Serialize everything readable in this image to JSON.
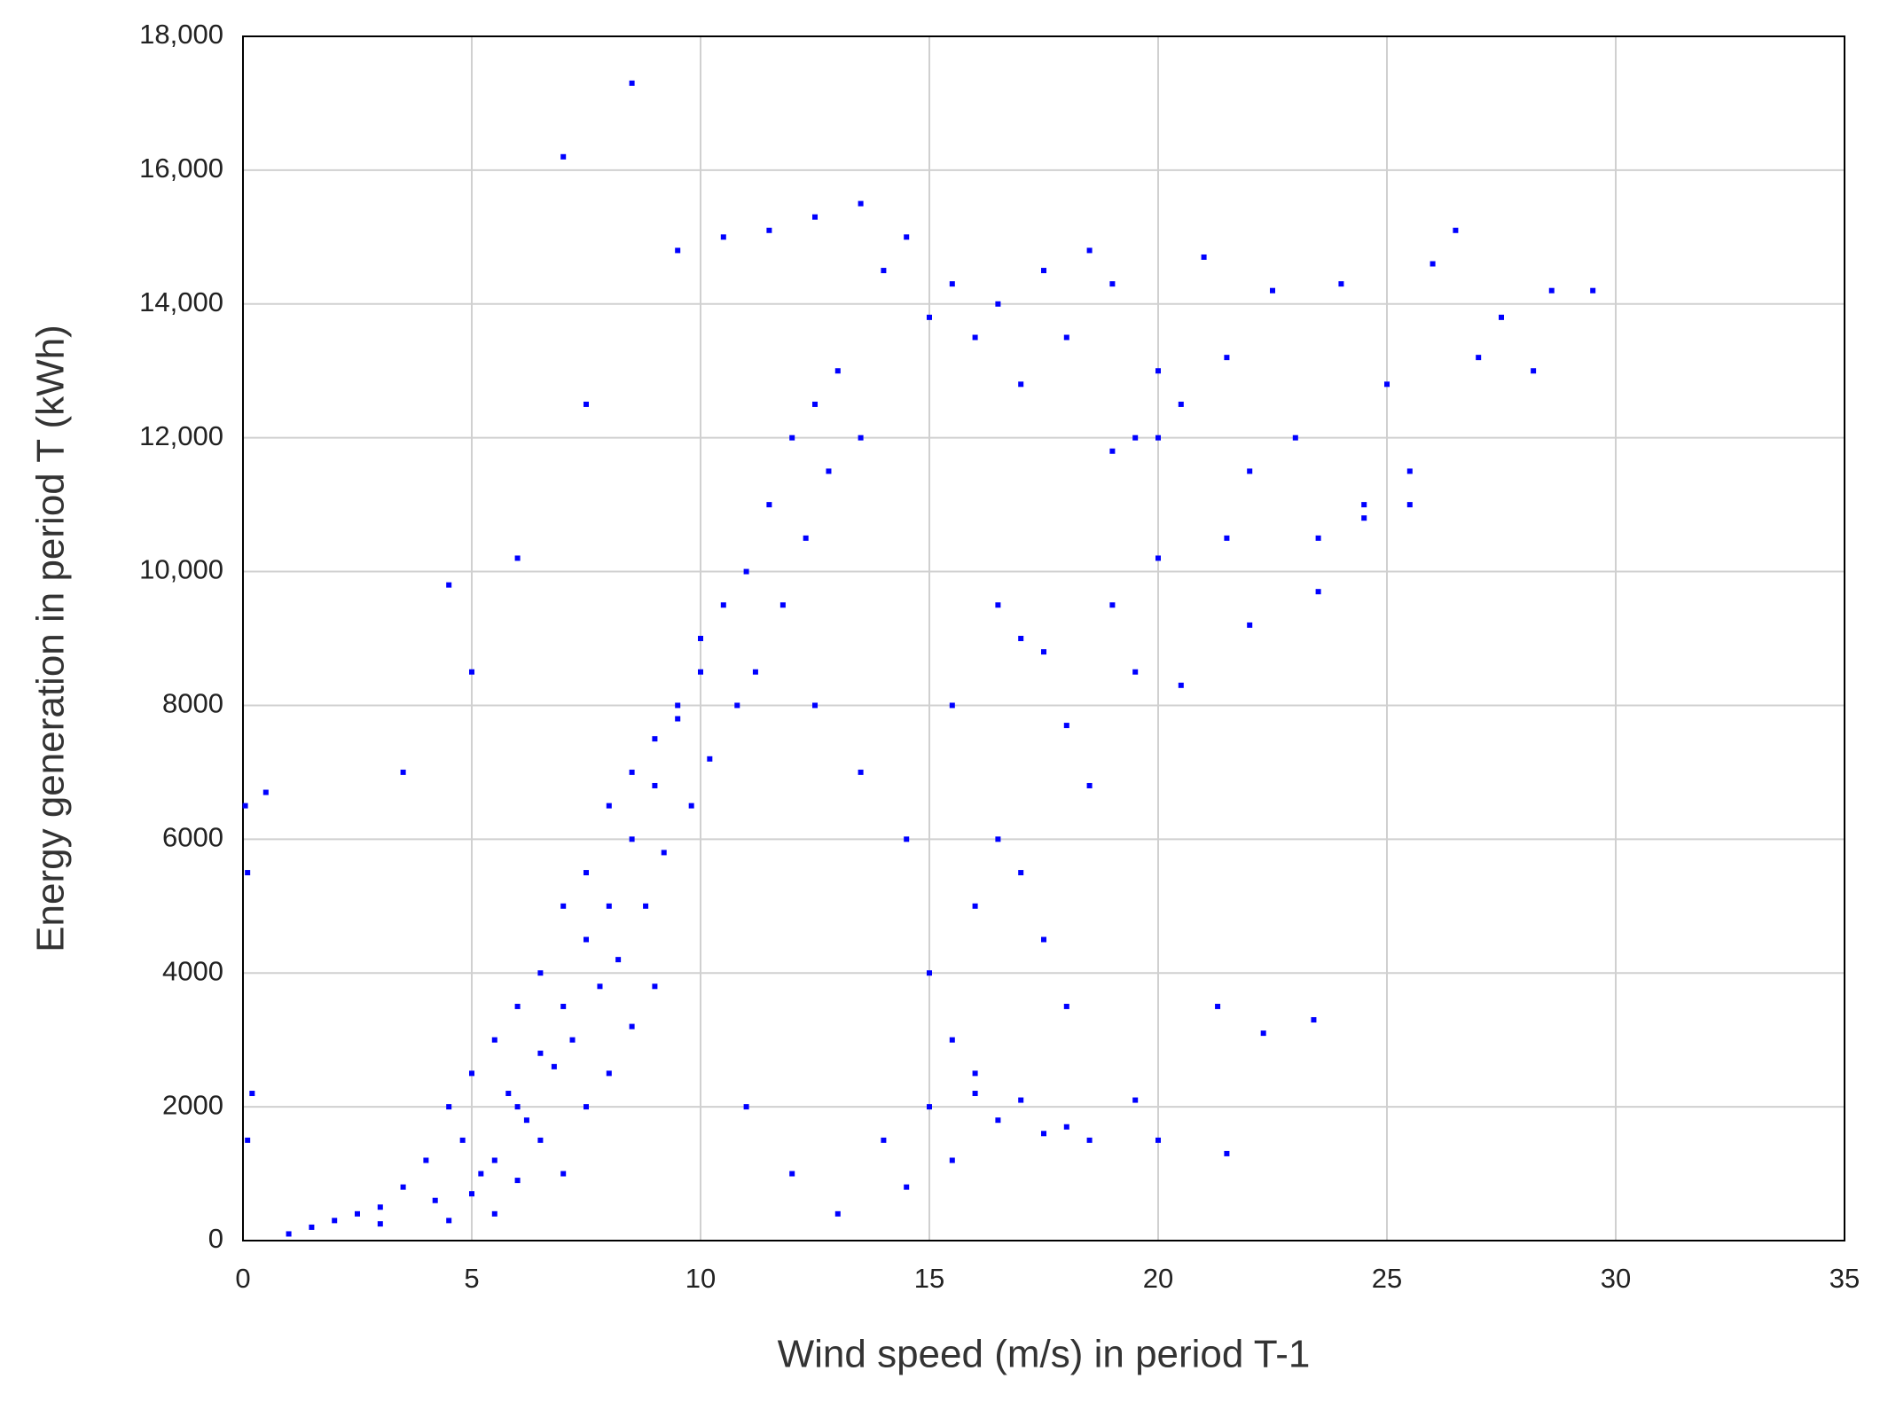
{
  "chart_data": {
    "type": "scatter",
    "x_label": "Wind speed (m/s) in period T-1",
    "y_label": "Energy generation in period T (kWh)",
    "color": "#0000ff",
    "grid": true,
    "xlim": [
      0,
      35
    ],
    "xticks": [
      0,
      5,
      10,
      15,
      20,
      25,
      30,
      35
    ],
    "ylim": [
      0,
      18000
    ],
    "yticks": [
      0,
      2000,
      4000,
      6000,
      8000,
      {
        "value": 10000,
        "label": "10,000"
      },
      {
        "value": 12000,
        "label": "12,000"
      },
      {
        "value": 14000,
        "label": "14,000"
      },
      {
        "value": 16000,
        "label": "16,000"
      },
      {
        "value": 18000,
        "label": "18,000"
      }
    ],
    "x": [
      3.0,
      3.5,
      4.0,
      4.2,
      4.5,
      4.8,
      5.0,
      5.2,
      5.5,
      5.8,
      6.0,
      6.2,
      6.5,
      6.8,
      7.0,
      7.2,
      7.5,
      7.8,
      8.0,
      8.2,
      8.5,
      8.8,
      9.0,
      9.2,
      9.5,
      9.8,
      10.0,
      10.2,
      10.5,
      10.8,
      11.0,
      11.2,
      11.5,
      11.8,
      12.0,
      12.3,
      12.5,
      12.8,
      13.0,
      13.5,
      5.5,
      6.0,
      6.5,
      7.0,
      7.5,
      8.0,
      8.5,
      9.0,
      9.5,
      10.0,
      4.5,
      5.0,
      5.5,
      6.0,
      6.5,
      7.0,
      7.5,
      8.0,
      8.5,
      9.0,
      1.0,
      1.5,
      2.0,
      2.5,
      3.0,
      0.1,
      0.2,
      0.5,
      0.05,
      0.1,
      7.0,
      8.5,
      4.5,
      3.5,
      5.0,
      6.0,
      7.5,
      9.5,
      10.5,
      11.5,
      12.5,
      13.5,
      14.0,
      14.5,
      15.0,
      15.5,
      16.0,
      16.5,
      17.0,
      17.5,
      18.0,
      18.5,
      19.0,
      19.5,
      20.0,
      20.5,
      21.0,
      21.5,
      22.0,
      22.5,
      23.0,
      23.5,
      24.0,
      24.5,
      25.0,
      25.5,
      26.0,
      26.5,
      27.0,
      27.5,
      28.2,
      28.6,
      29.5,
      22.3,
      23.4,
      21.3,
      19.5,
      20.0,
      16.0,
      18.5,
      14.0,
      14.5,
      15.0,
      15.5,
      16.0,
      16.5,
      17.0,
      17.5,
      18.0,
      18.5,
      15.0,
      15.5,
      16.0,
      16.5,
      17.0,
      17.5,
      18.0,
      13.0,
      12.0,
      11.0,
      13.5,
      14.5,
      15.5,
      16.5,
      17.5,
      19.0,
      20.0,
      20.5,
      21.5,
      12.5,
      19.0,
      20.0,
      21.5,
      22.0,
      23.5,
      24.5,
      25.5,
      19.5,
      18.0,
      17.0
    ],
    "y": [
      500,
      800,
      1200,
      600,
      2000,
      1500,
      2500,
      1000,
      3000,
      2200,
      3500,
      1800,
      4000,
      2600,
      5000,
      3000,
      5500,
      3800,
      6500,
      4200,
      7000,
      5000,
      7500,
      5800,
      8000,
      6500,
      9000,
      7200,
      9500,
      8000,
      10000,
      8500,
      11000,
      9500,
      12000,
      10500,
      12500,
      11500,
      13000,
      12000,
      1200,
      2000,
      2800,
      3500,
      4500,
      5000,
      6000,
      6800,
      7800,
      8500,
      300,
      700,
      400,
      900,
      1500,
      1000,
      2000,
      2500,
      3200,
      3800,
      100,
      200,
      300,
      400,
      250,
      1500,
      2200,
      6700,
      6500,
      5500,
      16200,
      17300,
      9800,
      7000,
      8500,
      10200,
      12500,
      14800,
      15000,
      15100,
      15300,
      15500,
      14500,
      15000,
      13800,
      14300,
      13500,
      14000,
      12800,
      14500,
      13500,
      14800,
      14300,
      12000,
      13000,
      12500,
      14700,
      13200,
      11500,
      14200,
      12000,
      10500,
      14300,
      11000,
      12800,
      11500,
      14600,
      15100,
      13200,
      13800,
      13000,
      14200,
      14200,
      3100,
      3300,
      3500,
      2100,
      1500,
      2200,
      6800,
      1500,
      800,
      2000,
      1200,
      2500,
      1800,
      2100,
      1600,
      1700,
      1500,
      4000,
      3000,
      5000,
      6000,
      5500,
      4500,
      3500,
      400,
      1000,
      2000,
      7000,
      6000,
      8000,
      9500,
      8800,
      9500,
      10200,
      8300,
      1300,
      8000,
      11800,
      12000,
      10500,
      9200,
      9700,
      10800,
      11000,
      8500,
      7700,
      9000
    ]
  }
}
